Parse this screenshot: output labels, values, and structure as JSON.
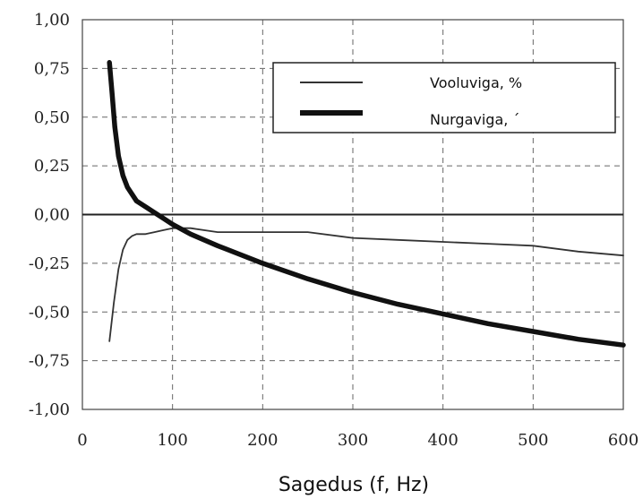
{
  "chart_data": {
    "type": "line",
    "title": "",
    "xlabel": "Sagedus (f, Hz)",
    "ylabel": "",
    "xlim": [
      0,
      600
    ],
    "ylim": [
      -1.0,
      1.0
    ],
    "x_ticks": [
      "0",
      "100",
      "200",
      "300",
      "400",
      "500",
      "600"
    ],
    "y_ticks": [
      "1,00",
      "0,75",
      "0,50",
      "0,25",
      "0,00",
      "-0,25",
      "-0,50",
      "-0,75",
      "-1,00"
    ],
    "grid": true,
    "legend_position": "top-right",
    "series": [
      {
        "name": "Vooluviga, %",
        "style": "thin",
        "color": "#333333",
        "x": [
          30,
          35,
          40,
          45,
          50,
          55,
          60,
          70,
          80,
          90,
          100,
          120,
          150,
          200,
          250,
          300,
          350,
          400,
          450,
          500,
          550,
          600
        ],
        "y": [
          -0.65,
          -0.45,
          -0.28,
          -0.18,
          -0.13,
          -0.11,
          -0.1,
          -0.1,
          -0.09,
          -0.08,
          -0.07,
          -0.07,
          -0.09,
          -0.09,
          -0.09,
          -0.12,
          -0.13,
          -0.14,
          -0.15,
          -0.16,
          -0.19,
          -0.21
        ]
      },
      {
        "name": "Nurgaviga, ´",
        "style": "thick",
        "color": "#111111",
        "x": [
          30,
          33,
          36,
          40,
          45,
          50,
          60,
          70,
          80,
          90,
          100,
          120,
          150,
          200,
          250,
          300,
          350,
          400,
          450,
          500,
          550,
          600
        ],
        "y": [
          0.78,
          0.62,
          0.45,
          0.3,
          0.2,
          0.14,
          0.07,
          0.04,
          0.01,
          -0.02,
          -0.05,
          -0.1,
          -0.16,
          -0.25,
          -0.33,
          -0.4,
          -0.46,
          -0.51,
          -0.56,
          -0.6,
          -0.64,
          -0.67
        ]
      }
    ]
  }
}
